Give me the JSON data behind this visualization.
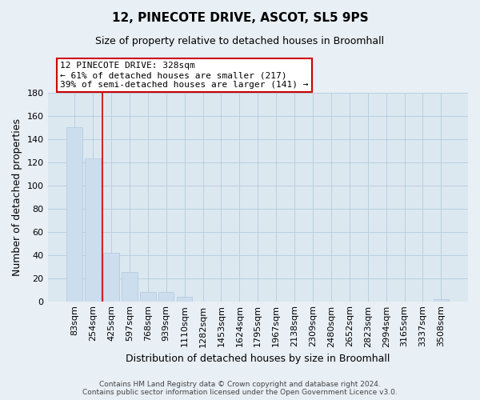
{
  "title": "12, PINECOTE DRIVE, ASCOT, SL5 9PS",
  "subtitle": "Size of property relative to detached houses in Broomhall",
  "xlabel": "Distribution of detached houses by size in Broomhall",
  "ylabel": "Number of detached properties",
  "bar_labels": [
    "83sqm",
    "254sqm",
    "425sqm",
    "597sqm",
    "768sqm",
    "939sqm",
    "1110sqm",
    "1282sqm",
    "1453sqm",
    "1624sqm",
    "1795sqm",
    "1967sqm",
    "2138sqm",
    "2309sqm",
    "2480sqm",
    "2652sqm",
    "2823sqm",
    "2994sqm",
    "3165sqm",
    "3337sqm",
    "3508sqm"
  ],
  "bar_values": [
    150,
    123,
    42,
    25,
    8,
    8,
    4,
    0,
    0,
    0,
    0,
    0,
    0,
    0,
    0,
    0,
    0,
    0,
    0,
    0,
    2
  ],
  "bar_color": "#ccdded",
  "redline_x": 1.5,
  "ylim": [
    0,
    180
  ],
  "yticks": [
    0,
    20,
    40,
    60,
    80,
    100,
    120,
    140,
    160,
    180
  ],
  "annotation_title": "12 PINECOTE DRIVE: 328sqm",
  "annotation_line1": "← 61% of detached houses are smaller (217)",
  "annotation_line2": "39% of semi-detached houses are larger (141) →",
  "footer_line1": "Contains HM Land Registry data © Crown copyright and database right 2024.",
  "footer_line2": "Contains public sector information licensed under the Open Government Licence v3.0.",
  "background_color": "#e8eff5",
  "plot_bg_color": "#dce8f0",
  "grid_color": "#b8cfe0",
  "title_fontsize": 11,
  "subtitle_fontsize": 9,
  "ylabel_fontsize": 9,
  "xlabel_fontsize": 9
}
